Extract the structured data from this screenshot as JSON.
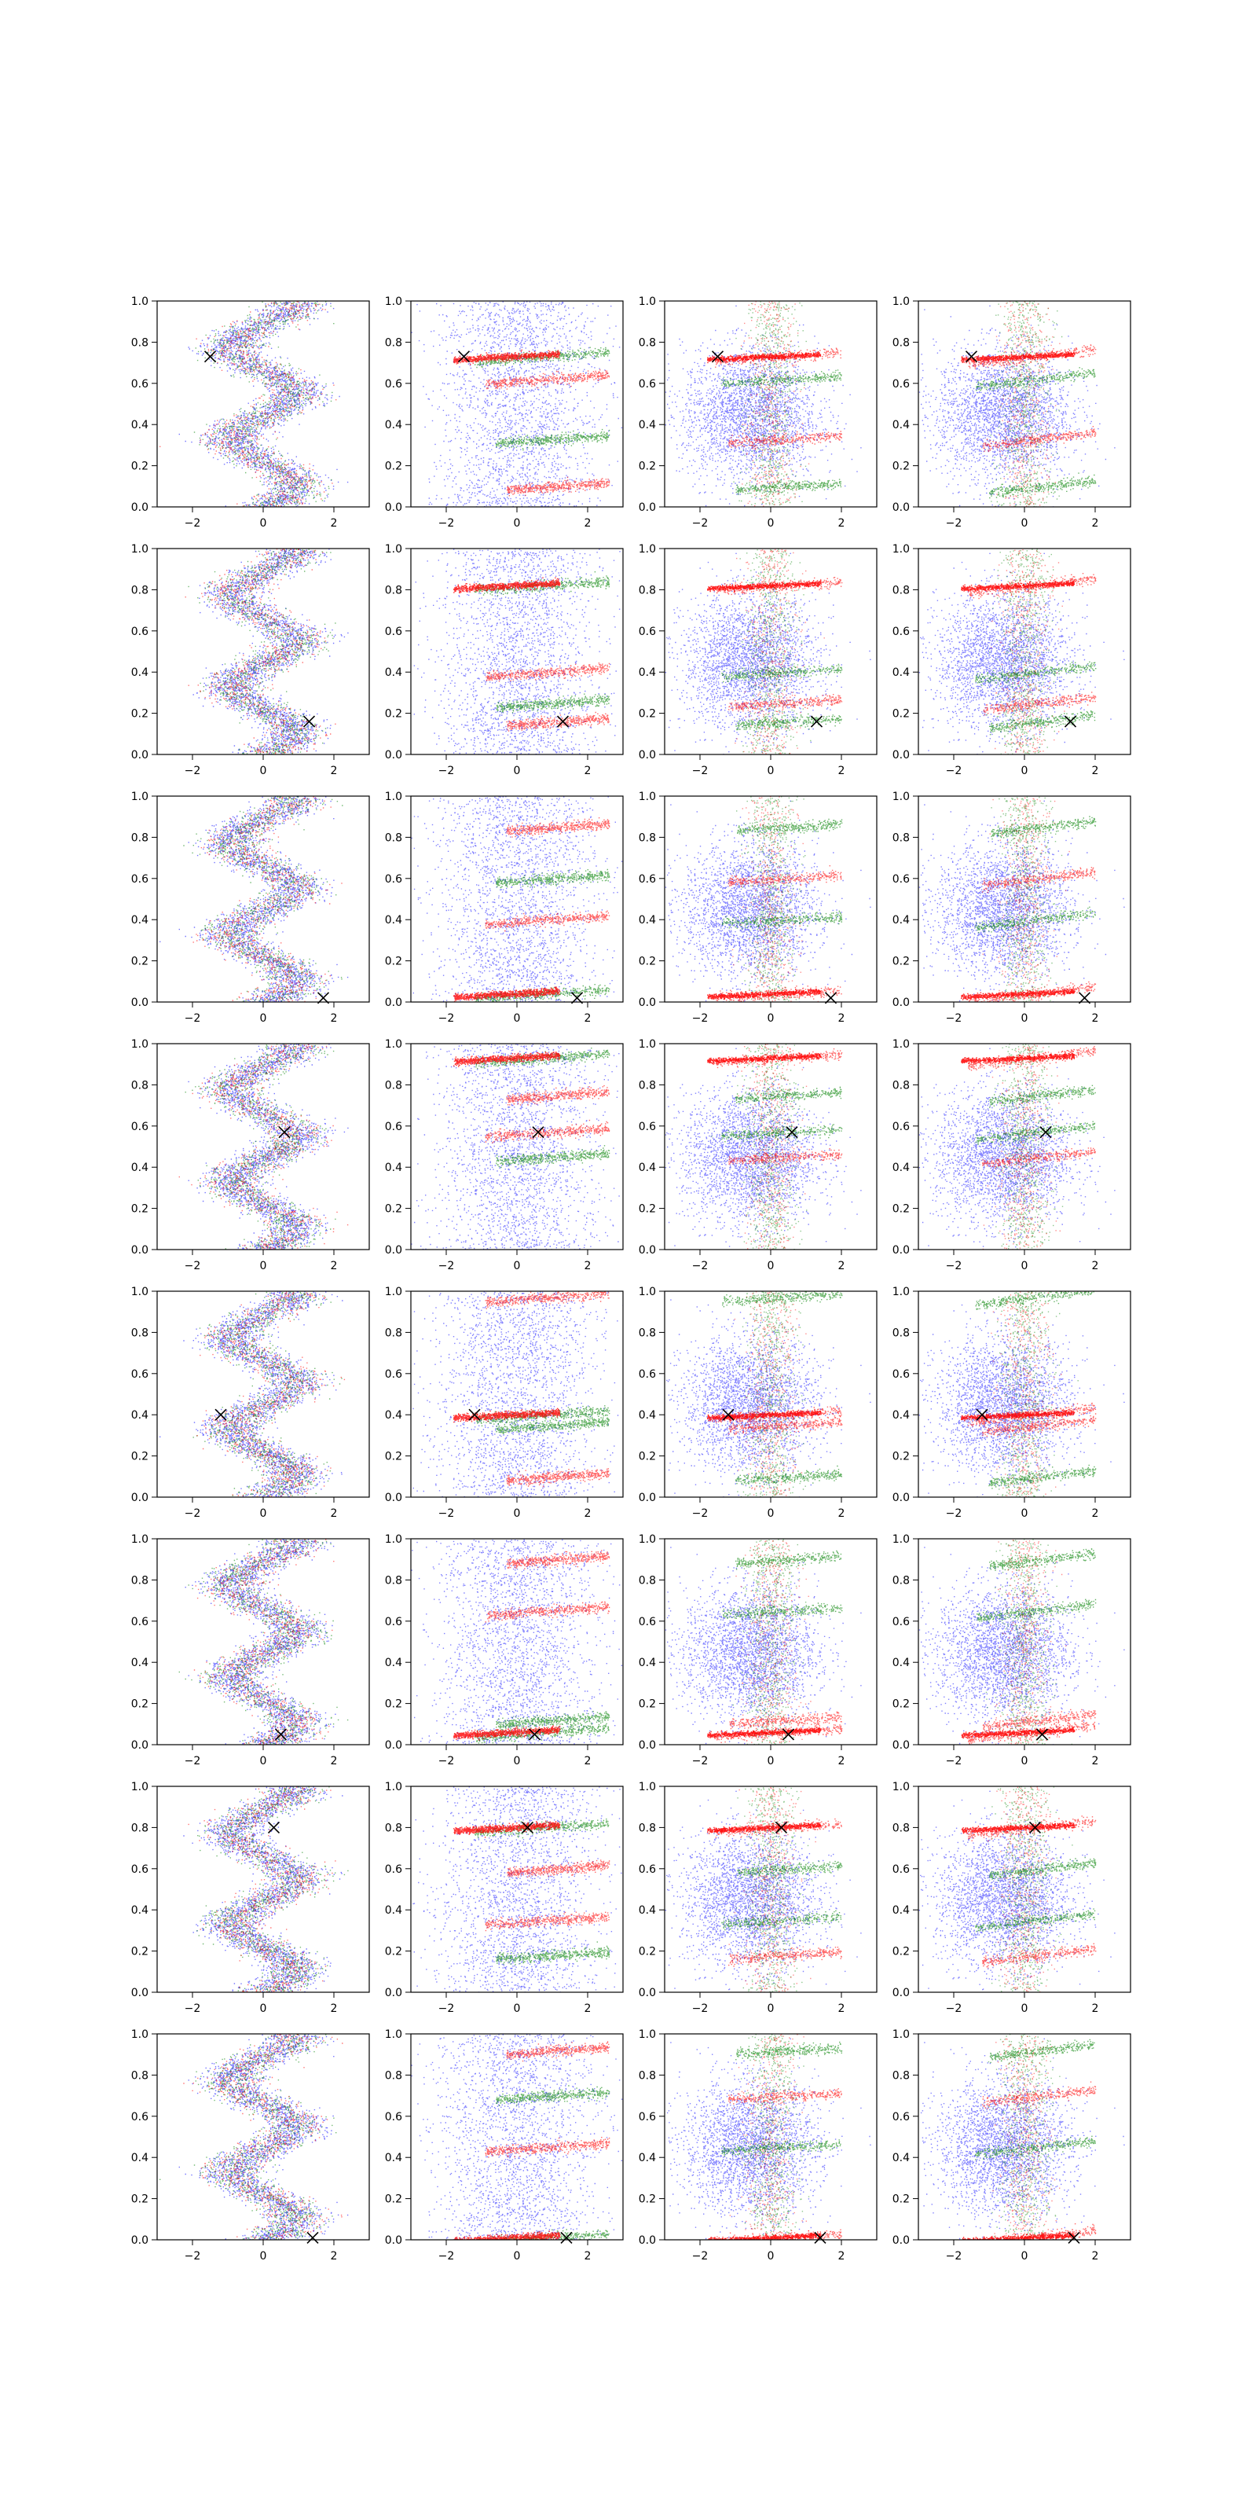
{
  "figure": {
    "rows": 8,
    "cols": 4,
    "description_colors": {
      "blue": "#0000ff",
      "green": "#008000",
      "red": "#ff0000",
      "marker": "#000000"
    }
  },
  "chart_data": {
    "type": "scatter",
    "layout": "grid 8x4",
    "xlim": [
      -3,
      3
    ],
    "ylim": [
      0,
      1
    ],
    "xticks": [
      -2,
      0,
      2
    ],
    "xtick_labels": [
      "−2",
      "0",
      "2"
    ],
    "yticks": [
      0.0,
      0.2,
      0.4,
      0.6,
      0.8,
      1.0
    ],
    "ytick_labels": [
      "0.0",
      "0.2",
      "0.4",
      "0.6",
      "0.8",
      "1.0"
    ],
    "series": [
      {
        "name": "blue",
        "color": "#0000ff"
      },
      {
        "name": "green",
        "color": "#008000"
      },
      {
        "name": "red",
        "color": "#ff0000"
      }
    ],
    "row_markers": [
      {
        "row": 1,
        "x": -1.5,
        "y": 0.73
      },
      {
        "row": 2,
        "x": 1.3,
        "y": 0.16
      },
      {
        "row": 3,
        "x": 1.7,
        "y": 0.02
      },
      {
        "row": 4,
        "x": 0.6,
        "y": 0.57
      },
      {
        "row": 5,
        "x": -1.2,
        "y": 0.4
      },
      {
        "row": 6,
        "x": 0.5,
        "y": 0.05
      },
      {
        "row": 7,
        "x": 0.3,
        "y": 0.8
      },
      {
        "row": 8,
        "x": 1.4,
        "y": 0.01
      }
    ],
    "marker_style": "x"
  }
}
